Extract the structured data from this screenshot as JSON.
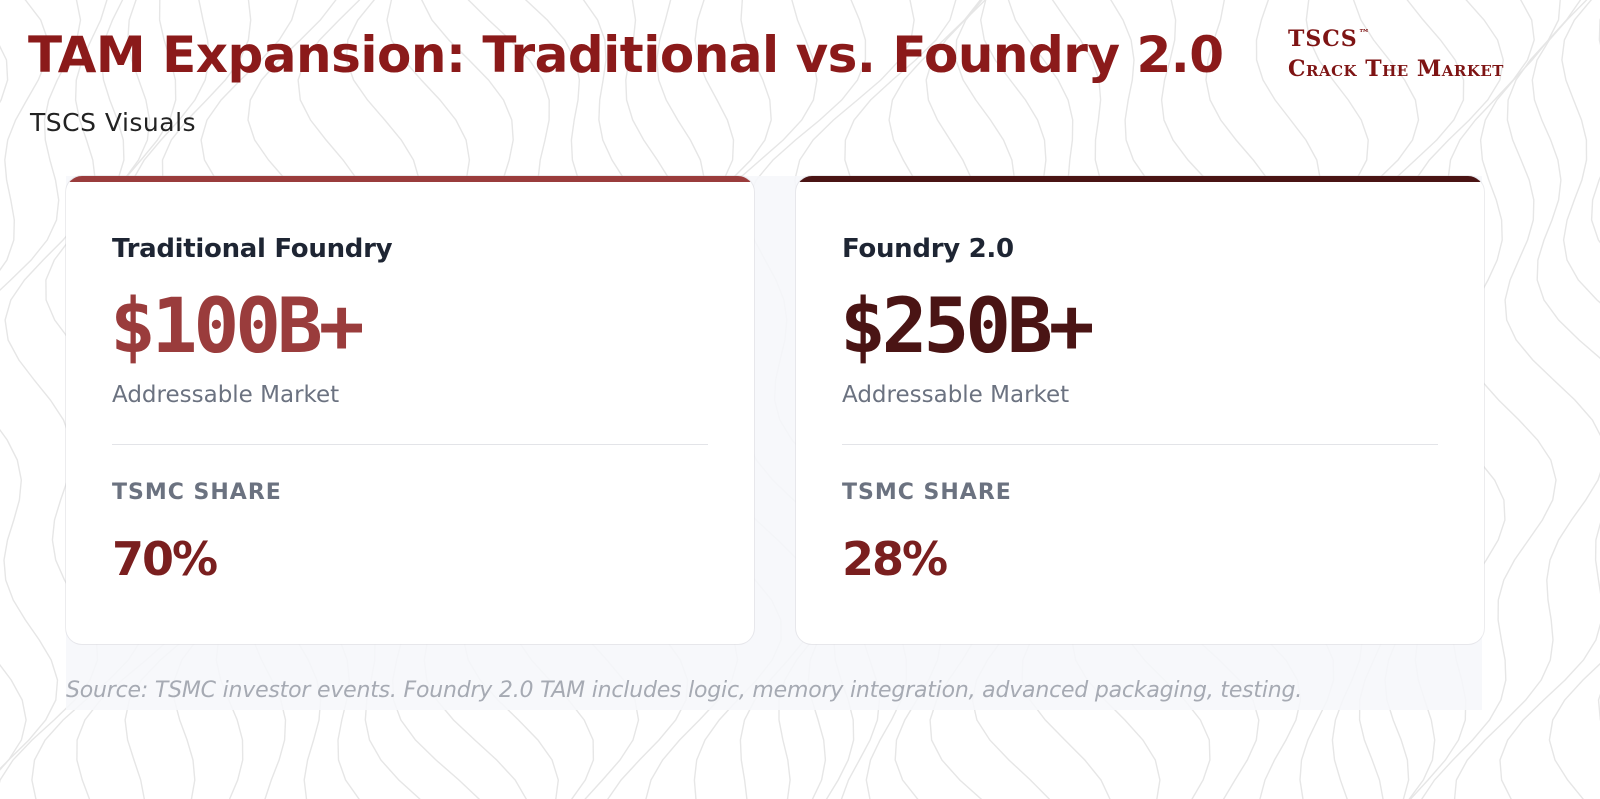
{
  "header": {
    "title": "TAM Expansion: Traditional vs. Foundry 2.0",
    "subtitle": "TSCS Visuals"
  },
  "logo": {
    "line1": "TSCS",
    "trademark": "™",
    "line2": "Crack The Market"
  },
  "cards": [
    {
      "title": "Traditional Foundry",
      "value": "$100B+",
      "caption": "Addressable Market",
      "share_label": "TSMC SHARE",
      "share_value": "70%",
      "accent_color": "#9a3c3c"
    },
    {
      "title": "Foundry 2.0",
      "value": "$250B+",
      "caption": "Addressable Market",
      "share_label": "TSMC SHARE",
      "share_value": "28%",
      "accent_color": "#4a1414"
    }
  ],
  "footnote": "Source: TSMC investor events. Foundry 2.0 TAM includes logic, memory integration, advanced packaging, testing.",
  "colors": {
    "title": "#8b1a1a",
    "share": "#7a1f1f",
    "muted_text": "#6b7280"
  }
}
